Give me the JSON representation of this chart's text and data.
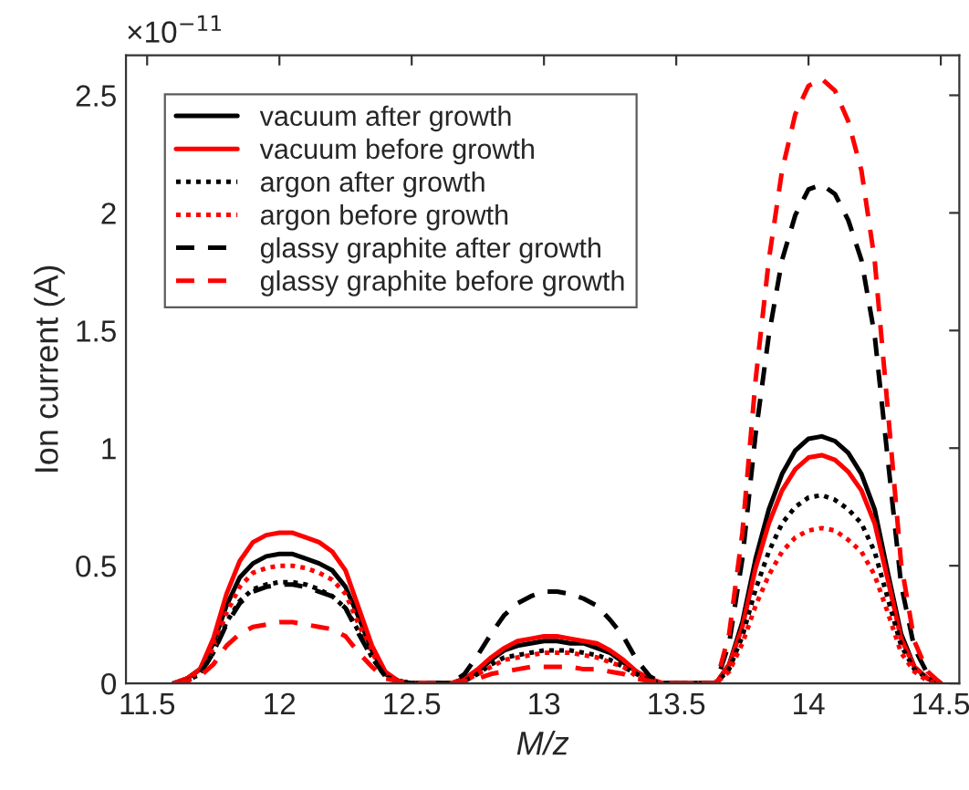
{
  "chart_data": {
    "type": "line",
    "xlabel": "M/z",
    "ylabel": "Ion current (A)",
    "annotations": [
      "×10$^{−11}$"
    ],
    "x": [
      11.6,
      11.65,
      11.7,
      11.75,
      11.8,
      11.85,
      11.9,
      11.95,
      12.0,
      12.05,
      12.1,
      12.15,
      12.2,
      12.25,
      12.3,
      12.35,
      12.4,
      12.45,
      12.5,
      12.6,
      12.65,
      12.7,
      12.75,
      12.8,
      12.85,
      12.9,
      12.95,
      13.0,
      13.05,
      13.1,
      13.15,
      13.2,
      13.25,
      13.3,
      13.35,
      13.4,
      13.45,
      13.6,
      13.65,
      13.7,
      13.75,
      13.8,
      13.85,
      13.9,
      13.95,
      14.0,
      14.05,
      14.1,
      14.15,
      14.2,
      14.25,
      14.3,
      14.35,
      14.4,
      14.45,
      14.5
    ],
    "series": [
      {
        "name": "vacuum after growth",
        "color": "#000000",
        "line_style": "solid",
        "values": [
          0,
          0.02,
          0.06,
          0.17,
          0.33,
          0.45,
          0.51,
          0.54,
          0.55,
          0.55,
          0.53,
          0.51,
          0.48,
          0.41,
          0.28,
          0.14,
          0.04,
          0.01,
          0,
          0,
          0,
          0.02,
          0.05,
          0.1,
          0.14,
          0.16,
          0.17,
          0.18,
          0.18,
          0.17,
          0.17,
          0.15,
          0.13,
          0.09,
          0.05,
          0.01,
          0,
          0,
          0,
          0.08,
          0.26,
          0.53,
          0.74,
          0.89,
          0.99,
          1.04,
          1.05,
          1.03,
          0.98,
          0.89,
          0.74,
          0.47,
          0.21,
          0.07,
          0.02,
          0
        ]
      },
      {
        "name": "vacuum before growth",
        "color": "#ff0000",
        "line_style": "solid",
        "values": [
          0,
          0.02,
          0.06,
          0.19,
          0.38,
          0.52,
          0.6,
          0.63,
          0.64,
          0.64,
          0.62,
          0.6,
          0.56,
          0.48,
          0.32,
          0.16,
          0.05,
          0.01,
          0,
          0,
          0,
          0.02,
          0.06,
          0.11,
          0.15,
          0.18,
          0.19,
          0.2,
          0.2,
          0.19,
          0.18,
          0.17,
          0.14,
          0.1,
          0.05,
          0.02,
          0,
          0,
          0,
          0.08,
          0.24,
          0.49,
          0.68,
          0.82,
          0.91,
          0.96,
          0.97,
          0.95,
          0.9,
          0.82,
          0.68,
          0.44,
          0.19,
          0.07,
          0.02,
          0
        ]
      },
      {
        "name": "argon after growth",
        "color": "#000000",
        "line_style": "dotted",
        "values": [
          0,
          0.01,
          0.04,
          0.13,
          0.26,
          0.35,
          0.4,
          0.42,
          0.43,
          0.43,
          0.42,
          0.4,
          0.37,
          0.32,
          0.22,
          0.11,
          0.03,
          0.01,
          0,
          0,
          0,
          0.01,
          0.04,
          0.08,
          0.11,
          0.12,
          0.13,
          0.14,
          0.14,
          0.14,
          0.13,
          0.12,
          0.1,
          0.07,
          0.04,
          0.01,
          0,
          0,
          0,
          0.06,
          0.2,
          0.4,
          0.56,
          0.68,
          0.75,
          0.79,
          0.8,
          0.78,
          0.74,
          0.68,
          0.56,
          0.36,
          0.16,
          0.06,
          0.02,
          0
        ]
      },
      {
        "name": "argon before growth",
        "color": "#ff0000",
        "line_style": "dotted",
        "values": [
          0,
          0.02,
          0.05,
          0.15,
          0.3,
          0.41,
          0.47,
          0.49,
          0.5,
          0.5,
          0.49,
          0.47,
          0.44,
          0.38,
          0.25,
          0.13,
          0.04,
          0.01,
          0,
          0,
          0,
          0.01,
          0.04,
          0.07,
          0.1,
          0.11,
          0.12,
          0.13,
          0.13,
          0.13,
          0.12,
          0.11,
          0.09,
          0.07,
          0.03,
          0.01,
          0,
          0,
          0,
          0.05,
          0.17,
          0.33,
          0.46,
          0.56,
          0.62,
          0.65,
          0.66,
          0.65,
          0.61,
          0.56,
          0.46,
          0.3,
          0.13,
          0.05,
          0.01,
          0
        ]
      },
      {
        "name": "glassy graphite after growth",
        "color": "#000000",
        "line_style": "dashed",
        "values": [
          0,
          0.01,
          0.04,
          0.13,
          0.25,
          0.34,
          0.39,
          0.41,
          0.42,
          0.42,
          0.41,
          0.39,
          0.37,
          0.32,
          0.21,
          0.11,
          0.03,
          0.01,
          0,
          0,
          0,
          0.04,
          0.12,
          0.21,
          0.29,
          0.34,
          0.37,
          0.39,
          0.39,
          0.38,
          0.36,
          0.33,
          0.27,
          0.2,
          0.1,
          0.03,
          0,
          0,
          0,
          0.17,
          0.53,
          1.06,
          1.48,
          1.8,
          1.99,
          2.1,
          2.12,
          2.08,
          1.97,
          1.8,
          1.48,
          0.95,
          0.42,
          0.15,
          0.04,
          0
        ]
      },
      {
        "name": "glassy graphite before growth",
        "color": "#ff0000",
        "line_style": "dashed",
        "values": [
          0,
          0.01,
          0.03,
          0.08,
          0.16,
          0.21,
          0.24,
          0.25,
          0.26,
          0.26,
          0.25,
          0.24,
          0.23,
          0.2,
          0.13,
          0.07,
          0.02,
          0.01,
          0,
          0,
          0,
          0.01,
          0.02,
          0.04,
          0.05,
          0.06,
          0.07,
          0.07,
          0.07,
          0.07,
          0.06,
          0.06,
          0.05,
          0.04,
          0.02,
          0.01,
          0,
          0,
          0,
          0.21,
          0.64,
          1.29,
          1.8,
          2.18,
          2.42,
          2.54,
          2.57,
          2.52,
          2.39,
          2.18,
          1.8,
          1.16,
          0.51,
          0.18,
          0.05,
          0
        ]
      }
    ],
    "xlim": [
      11.42,
      14.57
    ],
    "ylim": [
      0,
      2.67
    ],
    "xticks": [
      11.5,
      12,
      12.5,
      13,
      13.5,
      14,
      14.5
    ],
    "yticks": [
      0,
      0.5,
      1,
      1.5,
      2,
      2.5
    ],
    "legend": "top left",
    "grid": false,
    "marker": "none"
  }
}
